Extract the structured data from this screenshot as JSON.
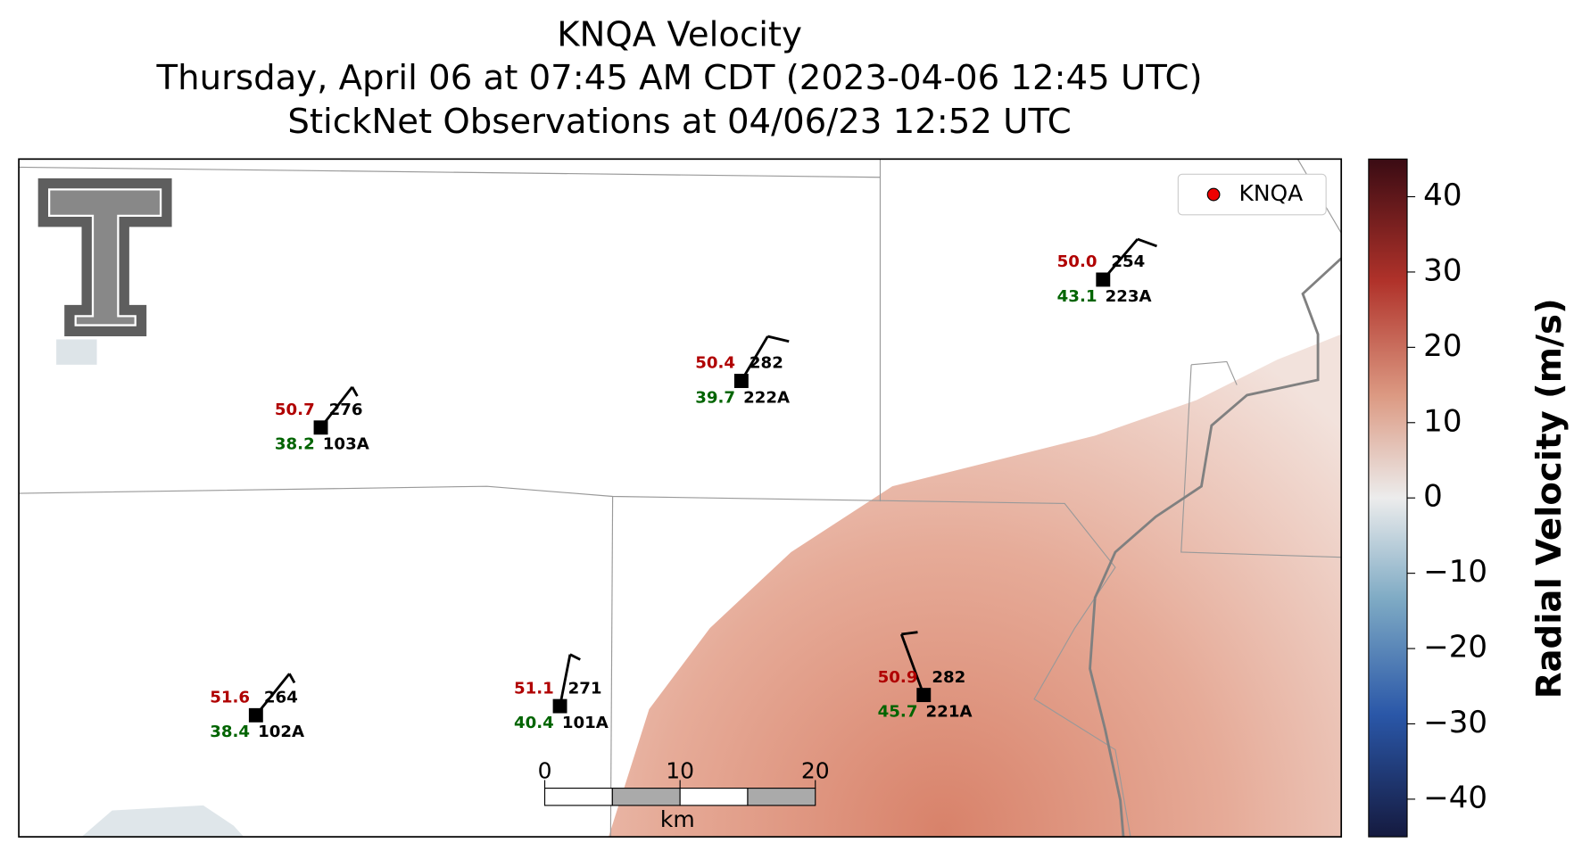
{
  "title": [
    "KNQA Velocity",
    "Thursday, April 06 at 07:45 AM CDT (2023-04-06 12:45 UTC)",
    "StickNet Observations at 04/06/23 12:52 UTC"
  ],
  "legend": "KNQA",
  "stations": [
    {
      "id": "103A",
      "temperature": "50.7",
      "dewpoint": "38.2",
      "value": "276"
    },
    {
      "id": "222A",
      "temperature": "50.4",
      "dewpoint": "39.7",
      "value": "282"
    },
    {
      "id": "223A",
      "temperature": "50.0",
      "dewpoint": "43.1",
      "value": "254"
    },
    {
      "id": "102A",
      "temperature": "51.6",
      "dewpoint": "38.4",
      "value": "264"
    },
    {
      "id": "101A",
      "temperature": "51.1",
      "dewpoint": "40.4",
      "value": "271"
    },
    {
      "id": "221A",
      "temperature": "50.9",
      "dewpoint": "45.7",
      "value": "282"
    }
  ],
  "colorbar": {
    "label": "Radial Velocity (m/s)",
    "lim": [
      -45,
      45
    ],
    "ticks": [
      40,
      30,
      20,
      10,
      0,
      {
        "value": -10,
        "label": "−10"
      },
      {
        "value": -20,
        "label": "−20"
      },
      {
        "value": -30,
        "label": "−30"
      },
      {
        "value": -40,
        "label": "−40"
      }
    ]
  },
  "scale_bar": {
    "ticks": [
      0,
      10,
      20
    ],
    "unit": "km"
  }
}
